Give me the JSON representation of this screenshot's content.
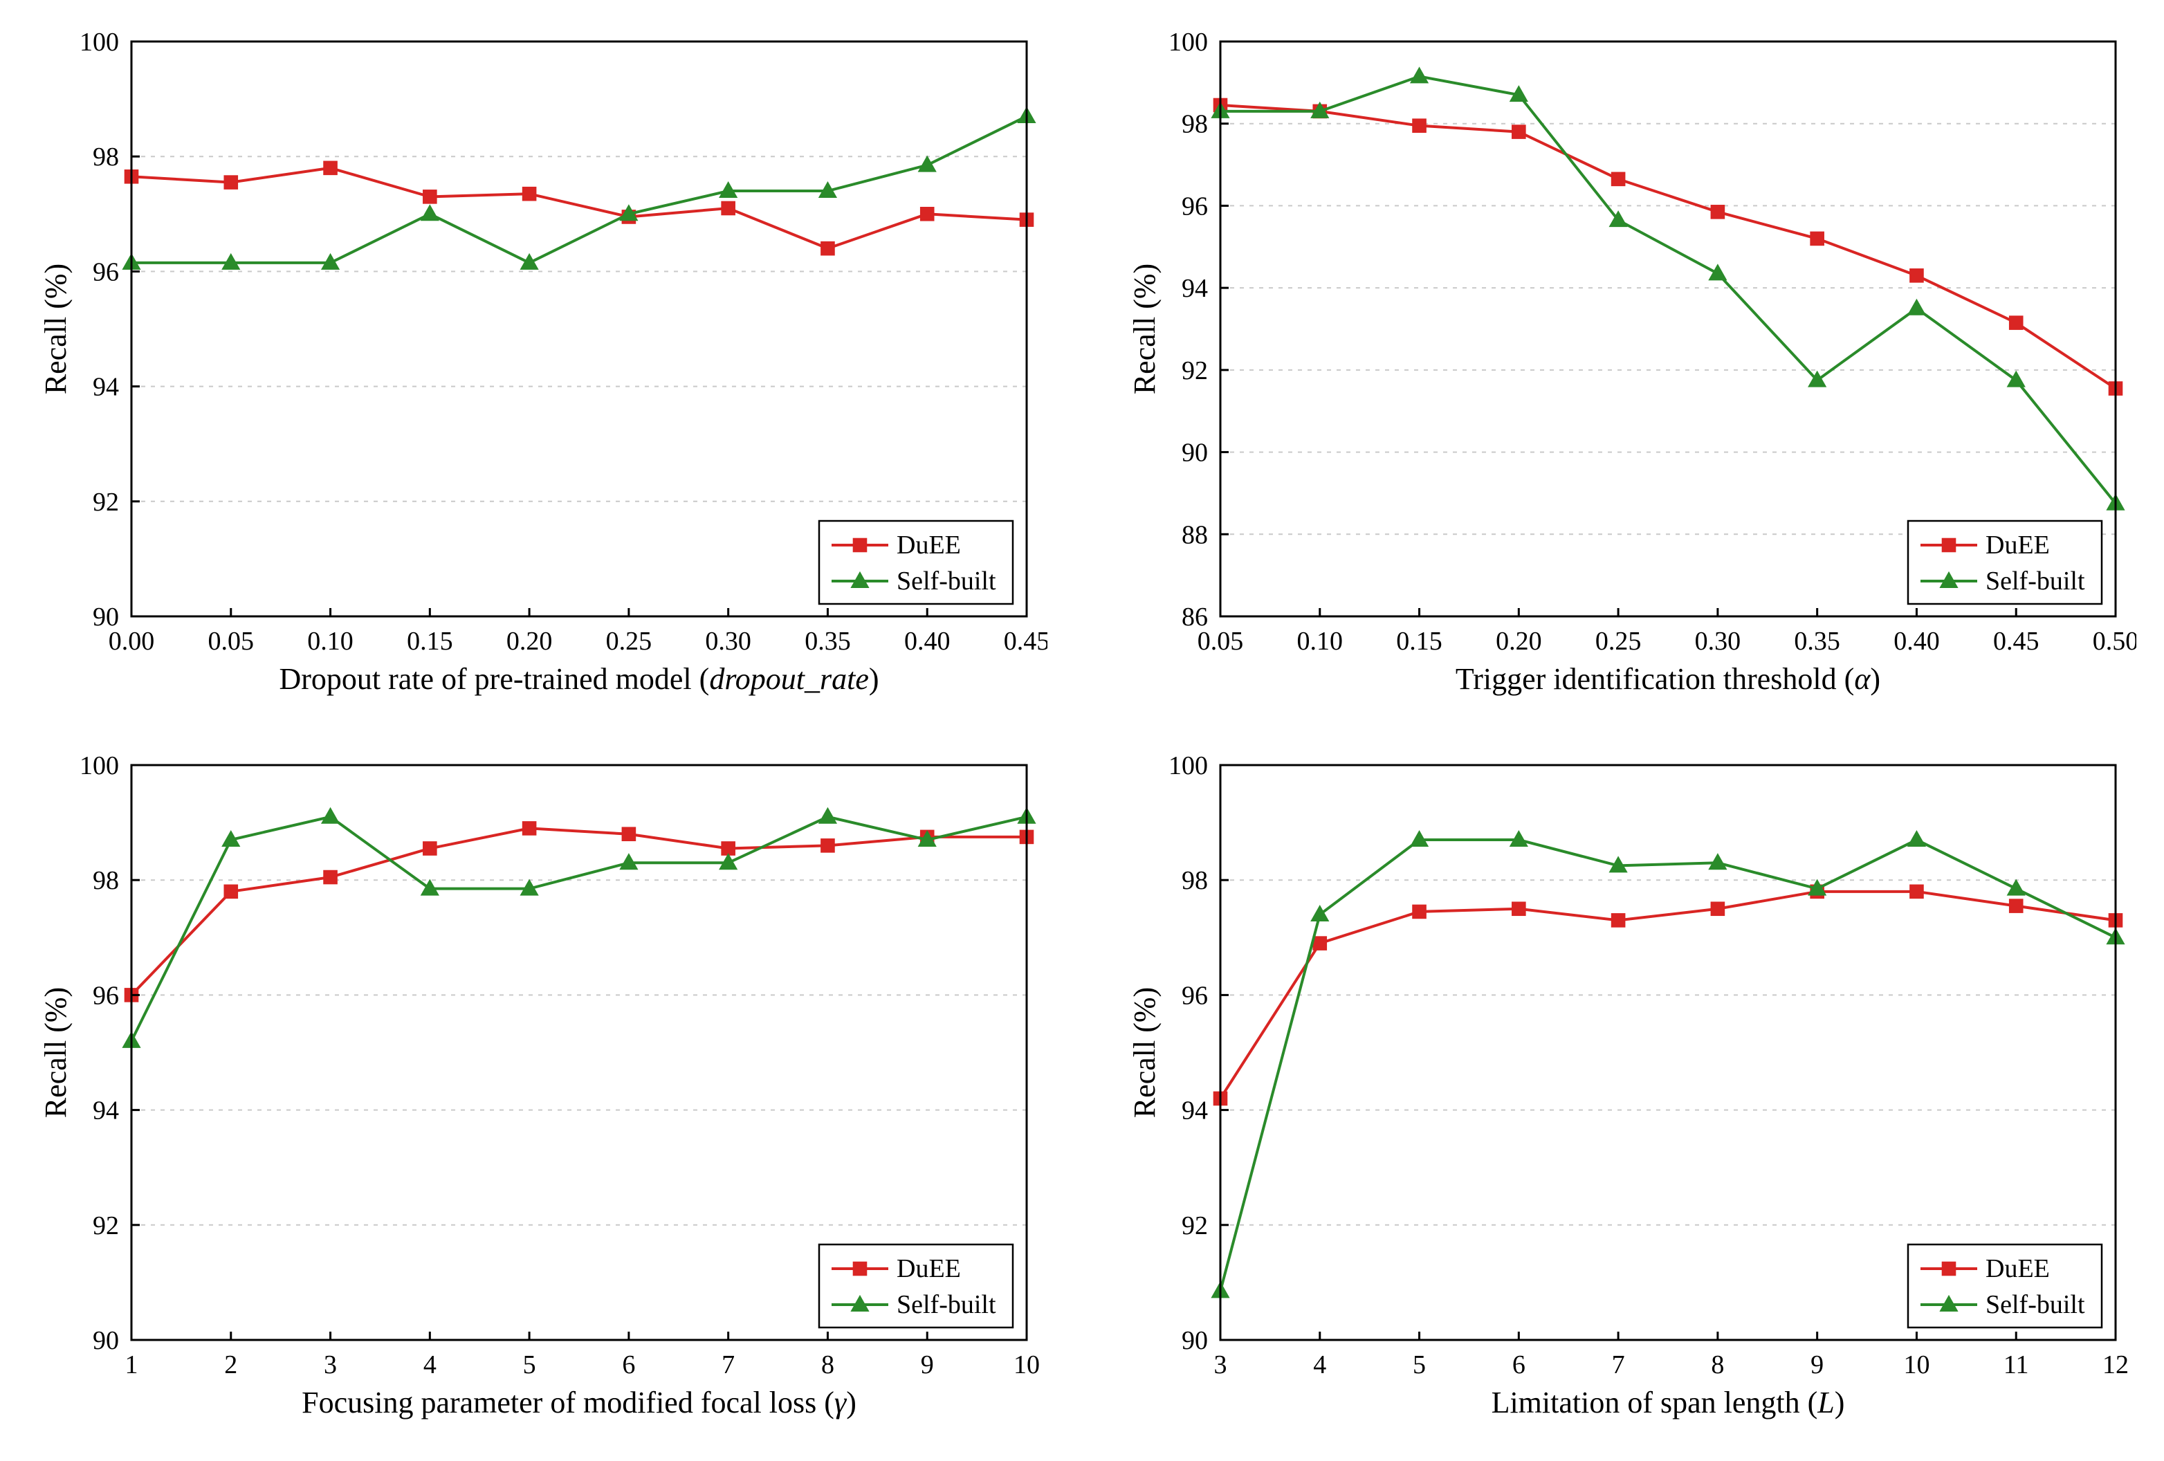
{
  "global": {
    "background_color": "#ffffff",
    "grid_color": "#c9c9c9",
    "axis_color": "#000000",
    "tick_fontsize": 38,
    "axis_title_fontsize": 44,
    "legend_fontsize": 38,
    "line_width": 4,
    "marker_size": 14,
    "series_colors": {
      "DuEE": "#d92523",
      "SelfBuilt": "#2a8b2a"
    },
    "series_markers": {
      "DuEE": "square",
      "SelfBuilt": "triangle"
    },
    "legend_labels": {
      "DuEE": "DuEE",
      "SelfBuilt": "Self-built"
    }
  },
  "panels": [
    {
      "id": "dropout",
      "type": "line",
      "xlabel": "Dropout rate of pre-trained model (dropout_rate)",
      "ylabel": "Recall (%)",
      "xlim": [
        0.0,
        0.45
      ],
      "ylim": [
        90,
        100
      ],
      "xticks": [
        0.0,
        0.05,
        0.1,
        0.15,
        0.2,
        0.25,
        0.3,
        0.35,
        0.4,
        0.45
      ],
      "xtick_labels": [
        "0.00",
        "0.05",
        "0.10",
        "0.15",
        "0.20",
        "0.25",
        "0.30",
        "0.35",
        "0.40",
        "0.45"
      ],
      "yticks": [
        90,
        92,
        94,
        96,
        98,
        100
      ],
      "ytick_labels": [
        "90",
        "92",
        "94",
        "96",
        "98",
        "100"
      ],
      "grid_y": [
        92,
        94,
        96,
        98
      ],
      "series": {
        "DuEE": {
          "x": [
            0.0,
            0.05,
            0.1,
            0.15,
            0.2,
            0.25,
            0.3,
            0.35,
            0.4,
            0.45
          ],
          "y": [
            97.65,
            97.55,
            97.8,
            97.3,
            97.35,
            96.95,
            97.1,
            96.4,
            97.0,
            96.9
          ]
        },
        "SelfBuilt": {
          "x": [
            0.0,
            0.05,
            0.1,
            0.15,
            0.2,
            0.25,
            0.3,
            0.35,
            0.4,
            0.45
          ],
          "y": [
            96.15,
            96.15,
            96.15,
            97.0,
            96.15,
            97.0,
            97.4,
            97.4,
            97.85,
            98.7
          ]
        }
      },
      "legend_pos": "bottom-right"
    },
    {
      "id": "alpha",
      "type": "line",
      "xlabel": "Trigger identification threshold (α)",
      "ylabel": "Recall (%)",
      "xlim": [
        0.05,
        0.5
      ],
      "ylim": [
        86,
        100
      ],
      "xticks": [
        0.05,
        0.1,
        0.15,
        0.2,
        0.25,
        0.3,
        0.35,
        0.4,
        0.45,
        0.5
      ],
      "xtick_labels": [
        "0.05",
        "0.10",
        "0.15",
        "0.20",
        "0.25",
        "0.30",
        "0.35",
        "0.40",
        "0.45",
        "0.50"
      ],
      "yticks": [
        86,
        88,
        90,
        92,
        94,
        96,
        98,
        100
      ],
      "ytick_labels": [
        "86",
        "88",
        "90",
        "92",
        "94",
        "96",
        "98",
        "100"
      ],
      "grid_y": [
        88,
        90,
        92,
        94,
        96,
        98
      ],
      "series": {
        "DuEE": {
          "x": [
            0.05,
            0.1,
            0.15,
            0.2,
            0.25,
            0.3,
            0.35,
            0.4,
            0.45,
            0.5
          ],
          "y": [
            98.45,
            98.3,
            97.95,
            97.8,
            96.65,
            95.85,
            95.2,
            94.3,
            93.15,
            91.55
          ]
        },
        "SelfBuilt": {
          "x": [
            0.05,
            0.1,
            0.15,
            0.2,
            0.25,
            0.3,
            0.35,
            0.4,
            0.45,
            0.5
          ],
          "y": [
            98.3,
            98.3,
            99.15,
            98.7,
            95.65,
            94.35,
            91.75,
            93.5,
            91.75,
            88.75
          ]
        }
      },
      "legend_pos": "bottom-right"
    },
    {
      "id": "gamma",
      "type": "line",
      "xlabel": "Focusing parameter of modified focal loss (γ)",
      "ylabel": "Recall (%)",
      "xlim": [
        1,
        10
      ],
      "ylim": [
        90,
        100
      ],
      "xticks": [
        1,
        2,
        3,
        4,
        5,
        6,
        7,
        8,
        9,
        10
      ],
      "xtick_labels": [
        "1",
        "2",
        "3",
        "4",
        "5",
        "6",
        "7",
        "8",
        "9",
        "10"
      ],
      "yticks": [
        90,
        92,
        94,
        96,
        98,
        100
      ],
      "ytick_labels": [
        "90",
        "92",
        "94",
        "96",
        "98",
        "100"
      ],
      "grid_y": [
        92,
        94,
        96,
        98
      ],
      "series": {
        "DuEE": {
          "x": [
            1,
            2,
            3,
            4,
            5,
            6,
            7,
            8,
            9,
            10
          ],
          "y": [
            96.0,
            97.8,
            98.05,
            98.55,
            98.9,
            98.8,
            98.55,
            98.6,
            98.75,
            98.75
          ]
        },
        "SelfBuilt": {
          "x": [
            1,
            2,
            3,
            4,
            5,
            6,
            7,
            8,
            9,
            10
          ],
          "y": [
            95.2,
            98.7,
            99.1,
            97.85,
            97.85,
            98.3,
            98.3,
            99.1,
            98.7,
            99.1
          ]
        }
      },
      "legend_pos": "bottom-right"
    },
    {
      "id": "L",
      "type": "line",
      "xlabel": "Limitation of span length (L)",
      "xlabel_italic_idx": [
        27
      ],
      "ylabel": "Recall (%)",
      "xlim": [
        3,
        12
      ],
      "ylim": [
        90,
        100
      ],
      "xticks": [
        3,
        4,
        5,
        6,
        7,
        8,
        9,
        10,
        11,
        12
      ],
      "xtick_labels": [
        "3",
        "4",
        "5",
        "6",
        "7",
        "8",
        "9",
        "10",
        "11",
        "12"
      ],
      "yticks": [
        90,
        92,
        94,
        96,
        98,
        100
      ],
      "ytick_labels": [
        "90",
        "92",
        "94",
        "96",
        "98",
        "100"
      ],
      "grid_y": [
        92,
        94,
        96,
        98
      ],
      "series": {
        "DuEE": {
          "x": [
            3,
            4,
            5,
            6,
            7,
            8,
            9,
            10,
            11,
            12
          ],
          "y": [
            94.2,
            96.9,
            97.45,
            97.5,
            97.3,
            97.5,
            97.8,
            97.8,
            97.55,
            97.3
          ]
        },
        "SelfBuilt": {
          "x": [
            3,
            4,
            5,
            6,
            7,
            8,
            9,
            10,
            11,
            12
          ],
          "y": [
            90.85,
            97.4,
            98.7,
            98.7,
            98.25,
            98.3,
            97.85,
            98.7,
            97.85,
            97.0
          ]
        }
      },
      "legend_pos": "bottom-right"
    }
  ]
}
